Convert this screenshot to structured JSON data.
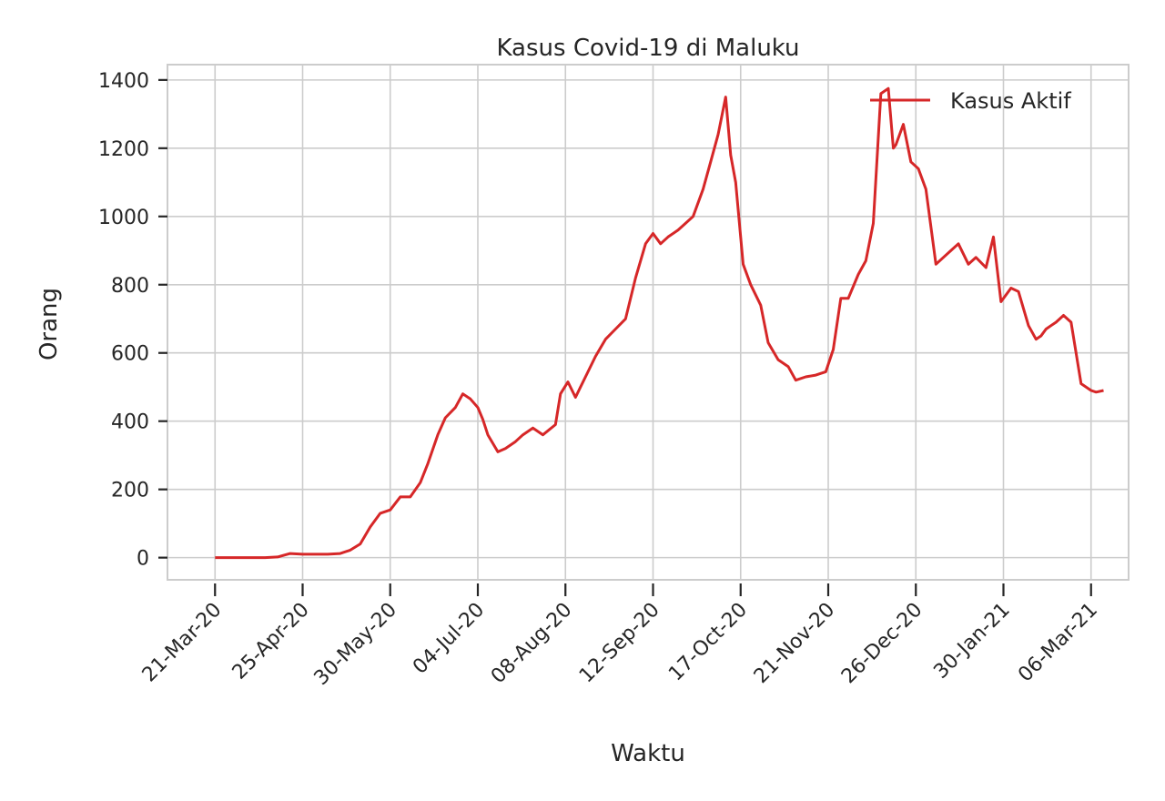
{
  "chart_data": {
    "type": "line",
    "title": "Kasus Covid-19 di Maluku",
    "xlabel": "Waktu",
    "ylabel": "Orang",
    "x_start": "2020-03-21",
    "x_end": "2021-03-11",
    "xlim": [
      "2020-03-02",
      "2021-03-21"
    ],
    "ylim": [
      -65,
      1445
    ],
    "yticks": [
      0,
      200,
      400,
      600,
      800,
      1000,
      1200,
      1400
    ],
    "xticks": [
      "21-Mar-20",
      "25-Apr-20",
      "30-May-20",
      "04-Jul-20",
      "08-Aug-20",
      "12-Sep-20",
      "17-Oct-20",
      "21-Nov-20",
      "26-Dec-20",
      "30-Jan-21",
      "06-Mar-21"
    ],
    "xtick_dates": [
      "2020-03-21",
      "2020-04-25",
      "2020-05-30",
      "2020-07-04",
      "2020-08-08",
      "2020-09-12",
      "2020-10-17",
      "2020-11-21",
      "2020-12-26",
      "2021-01-30",
      "2021-03-06"
    ],
    "grid": true,
    "legend_position": "top-right",
    "series": [
      {
        "name": "Kasus Aktif",
        "color": "#d62728",
        "x": [
          "2020-03-21",
          "2020-04-01",
          "2020-04-10",
          "2020-04-15",
          "2020-04-20",
          "2020-04-25",
          "2020-05-01",
          "2020-05-05",
          "2020-05-10",
          "2020-05-14",
          "2020-05-18",
          "2020-05-22",
          "2020-05-26",
          "2020-05-30",
          "2020-06-03",
          "2020-06-07",
          "2020-06-11",
          "2020-06-14",
          "2020-06-18",
          "2020-06-21",
          "2020-06-25",
          "2020-06-28",
          "2020-07-01",
          "2020-07-04",
          "2020-07-06",
          "2020-07-08",
          "2020-07-12",
          "2020-07-15",
          "2020-07-19",
          "2020-07-22",
          "2020-07-26",
          "2020-07-30",
          "2020-08-04",
          "2020-08-06",
          "2020-08-09",
          "2020-08-12",
          "2020-08-16",
          "2020-08-20",
          "2020-08-24",
          "2020-08-28",
          "2020-09-01",
          "2020-09-05",
          "2020-09-09",
          "2020-09-12",
          "2020-09-15",
          "2020-09-18",
          "2020-09-22",
          "2020-09-25",
          "2020-09-28",
          "2020-10-02",
          "2020-10-05",
          "2020-10-08",
          "2020-10-11",
          "2020-10-13",
          "2020-10-15",
          "2020-10-18",
          "2020-10-21",
          "2020-10-25",
          "2020-10-28",
          "2020-11-01",
          "2020-11-05",
          "2020-11-08",
          "2020-11-12",
          "2020-11-16",
          "2020-11-20",
          "2020-11-23",
          "2020-11-26",
          "2020-11-29",
          "2020-12-03",
          "2020-12-06",
          "2020-12-09",
          "2020-12-12",
          "2020-12-15",
          "2020-12-17",
          "2020-12-18",
          "2020-12-21",
          "2020-12-24",
          "2020-12-27",
          "2020-12-30",
          "2021-01-03",
          "2021-01-06",
          "2021-01-09",
          "2021-01-12",
          "2021-01-16",
          "2021-01-19",
          "2021-01-23",
          "2021-01-26",
          "2021-01-29",
          "2021-01-31",
          "2021-02-02",
          "2021-02-05",
          "2021-02-09",
          "2021-02-12",
          "2021-02-14",
          "2021-02-16",
          "2021-02-18",
          "2021-02-20",
          "2021-02-23",
          "2021-02-26",
          "2021-03-02",
          "2021-03-04",
          "2021-03-06",
          "2021-03-08",
          "2021-03-11"
        ],
        "y": [
          0,
          0,
          0,
          2,
          12,
          10,
          10,
          10,
          12,
          22,
          40,
          90,
          130,
          140,
          178,
          178,
          220,
          275,
          360,
          410,
          440,
          480,
          465,
          440,
          405,
          360,
          310,
          320,
          340,
          360,
          380,
          360,
          390,
          480,
          515,
          470,
          530,
          590,
          640,
          670,
          700,
          820,
          920,
          950,
          920,
          940,
          960,
          980,
          1000,
          1080,
          1160,
          1240,
          1350,
          1180,
          1100,
          860,
          800,
          740,
          630,
          580,
          560,
          520,
          530,
          535,
          545,
          610,
          760,
          760,
          830,
          870,
          980,
          1360,
          1375,
          1200,
          1210,
          1270,
          1160,
          1140,
          1080,
          860,
          880,
          900,
          920,
          860,
          880,
          850,
          940,
          750,
          770,
          790,
          780,
          680,
          640,
          650,
          670,
          680,
          690,
          710,
          690,
          510,
          500,
          490,
          485,
          490
        ]
      }
    ]
  }
}
